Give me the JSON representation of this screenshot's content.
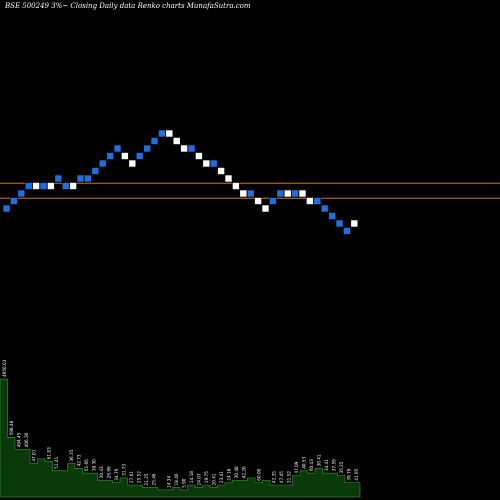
{
  "chart_data": {
    "type": "renko",
    "title": "BSE 500249 3%~  Closing Daily data  Renko  charts MunafaSutra.com",
    "xlabel": "",
    "ylabel": "",
    "grid": false,
    "colors": {
      "background": "#000000",
      "up": "#ffffff",
      "down": "#1f6fe0",
      "reference_line": "#c8772a",
      "volume_fill": "#0a3a0a",
      "volume_stroke": "#2a8a2a",
      "label": "#ffffff"
    },
    "brick_levels": [
      0,
      1,
      2,
      3,
      3,
      3,
      3,
      4,
      3,
      3,
      4,
      4,
      5,
      6,
      7,
      8,
      7,
      6,
      7,
      8,
      9,
      10,
      10,
      9,
      8,
      8,
      7,
      6,
      6,
      5,
      4,
      3,
      2,
      2,
      1,
      0,
      1,
      2,
      2,
      2,
      2,
      1,
      1,
      0,
      -1,
      -2,
      -3,
      -2
    ],
    "brick_dirs": [
      "d",
      "d",
      "d",
      "d",
      "u",
      "d",
      "u",
      "d",
      "d",
      "u",
      "d",
      "d",
      "d",
      "d",
      "d",
      "d",
      "u",
      "u",
      "d",
      "d",
      "d",
      "d",
      "u",
      "u",
      "u",
      "d",
      "u",
      "u",
      "d",
      "u",
      "u",
      "u",
      "u",
      "d",
      "u",
      "u",
      "d",
      "d",
      "u",
      "d",
      "u",
      "u",
      "d",
      "d",
      "d",
      "d",
      "d",
      "u"
    ],
    "reference_levels": [
      3.5,
      1.5
    ],
    "volume": {
      "peak_label": "4950.03",
      "values": [
        4950,
        2500,
        2000,
        2000,
        1400,
        1600,
        1500,
        1100,
        1100,
        1400,
        1200,
        1000,
        1000,
        700,
        700,
        600,
        800,
        500,
        500,
        400,
        400,
        300,
        300,
        400,
        300,
        500,
        400,
        500,
        400,
        500,
        600,
        700,
        700,
        800,
        600,
        700,
        500,
        500,
        500,
        900,
        1100,
        1000,
        1200,
        1000,
        1000,
        900,
        600,
        600
      ],
      "labels": [
        "4950.03",
        "598.48",
        "494.45",
        "406.30",
        "47.01",
        "",
        "61.83",
        "51.41",
        "",
        "36.35",
        "42.73",
        "51.66",
        "38.30",
        "30.43",
        "26.99",
        "34.79",
        "31.73",
        "27.01",
        "25.52",
        "21.25",
        "25.46",
        "",
        "14.34",
        "18.46",
        "5.90",
        "14.18",
        "24.07",
        "19.75",
        "20.41",
        "23.41",
        "24.18",
        "30.48",
        "42.20",
        "",
        "60.00",
        "",
        "42.35",
        "47.45",
        "31.52",
        "47.09",
        "40.53",
        "60.43",
        "30.41",
        "34.41",
        "37.59",
        "35.25",
        "39.79",
        "41.95"
      ]
    }
  }
}
